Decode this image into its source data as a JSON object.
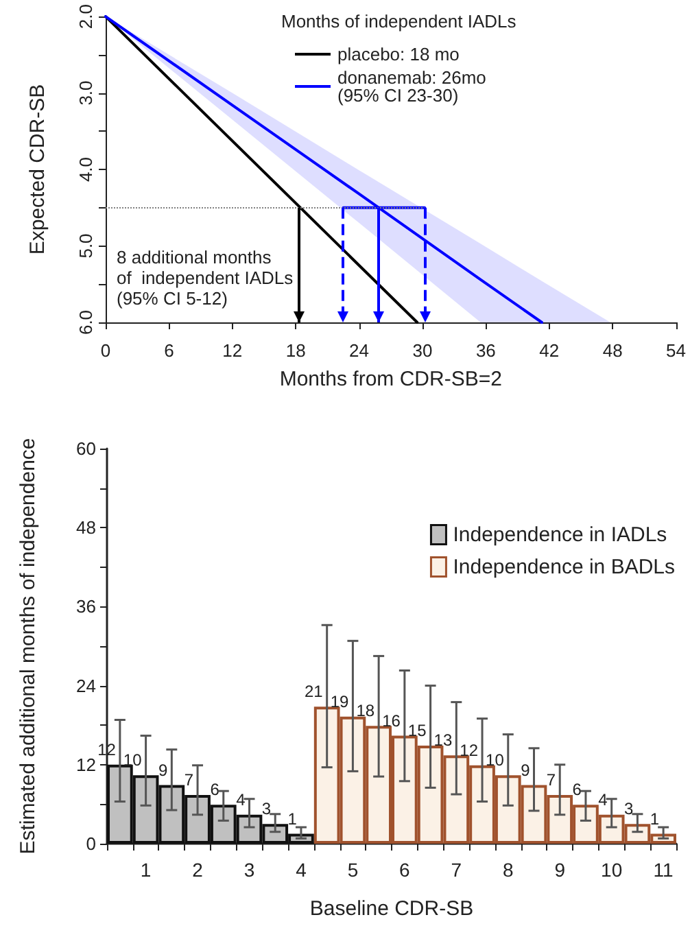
{
  "chart_data": [
    {
      "type": "line",
      "xlabel": "Months from CDR-SB=2",
      "ylabel": "Expected CDR-SB",
      "legend_title": "Months of independent IADLs",
      "xlim": [
        0,
        54
      ],
      "xticks": [
        0,
        6,
        12,
        18,
        24,
        30,
        36,
        42,
        48,
        54
      ],
      "ylim": [
        6,
        2
      ],
      "yticks": [
        {
          "value": 2,
          "label": "2.0"
        },
        {
          "value": 2.5,
          "label": null
        },
        {
          "value": 3,
          "label": "3.0"
        },
        {
          "value": 3.5,
          "label": null
        },
        {
          "value": 4,
          "label": "4.0"
        },
        {
          "value": 4.5,
          "label": null
        },
        {
          "value": 5,
          "label": "5.0"
        },
        {
          "value": 5.5,
          "label": null
        },
        {
          "value": 6,
          "label": "6.0"
        }
      ],
      "grid": false,
      "legend": "top right",
      "marker": "none",
      "line_style": "solid",
      "series": [
        {
          "name": "placebo: 18 mo",
          "color": "#000000",
          "x": [
            0,
            29.5
          ],
          "values": [
            2,
            6
          ]
        },
        {
          "name": "donanemab: 26mo\n(95% CI 23-30)",
          "color": "#0000ff",
          "x": [
            0,
            12,
            24,
            35.5,
            41.3,
            47.8
          ],
          "values": [
            2,
            3.16,
            4.32,
            5.44,
            6,
            null
          ],
          "lower": [
            2,
            3.0,
            4.01,
            4.97,
            5.46,
            6
          ],
          "upper": [
            2,
            3.35,
            4.7,
            6,
            6,
            6
          ]
        },
        {
          "color": "#0000ff",
          "x": [
            22.5,
            30.2
          ],
          "values": [
            4.5,
            4.5
          ]
        }
      ],
      "ref_lines": [
        {
          "axis": "y",
          "value": 4.5,
          "color": "#808080",
          "line_style": "dotted"
        },
        {
          "axis": "x",
          "value": 18.3,
          "color": "#000000",
          "line_style": "solid"
        },
        {
          "axis": "x",
          "value": 22.5,
          "color": "#0000ff",
          "line_style": "dashed"
        },
        {
          "axis": "x",
          "value": 25.8,
          "color": "#0000ff",
          "line_style": "solid"
        },
        {
          "axis": "x",
          "value": 30.2,
          "color": "#0000ff",
          "line_style": "dashed"
        }
      ],
      "annotations": [
        "8 additional months\nof  independent IADLs\n(95% CI 5-12)"
      ]
    },
    {
      "type": "bar",
      "stacked": true,
      "xlabel": "Baseline CDR-SB",
      "ylabel": "Estimated additional months of independence",
      "categories": [
        null,
        "1",
        null,
        "2",
        null,
        "3",
        null,
        "4",
        null,
        "5",
        null,
        "6",
        null,
        "7",
        null,
        "8",
        null,
        "9",
        null,
        "10",
        null,
        "11"
      ],
      "ylim": [
        0,
        60
      ],
      "yticks": [
        0,
        {
          "value": 6,
          "label": null
        },
        12,
        {
          "value": 18,
          "label": null
        },
        24,
        {
          "value": 30,
          "label": null
        },
        36,
        {
          "value": 42,
          "label": null
        },
        48,
        {
          "value": 54,
          "label": null
        },
        60
      ],
      "grid": false,
      "legend": "top right",
      "series": [
        {
          "name": "Independence in IADLs",
          "color": "#c0c0c0",
          "values": [
            12.0,
            10.4,
            8.9,
            7.4,
            5.9,
            4.4,
            3.0,
            1.5,
            null,
            null,
            null,
            null,
            null,
            null,
            null,
            null,
            null,
            null,
            null,
            null,
            null,
            null
          ],
          "value_labels": [
            "12",
            "10",
            "9",
            "7",
            "6",
            "4",
            "3",
            "1",
            null,
            null,
            null,
            null,
            null,
            null,
            null,
            null,
            null,
            null,
            null,
            null,
            null,
            null
          ],
          "errors": [
            [
              6.4,
              18.8
            ],
            [
              5.8,
              16.4
            ],
            [
              5.1,
              14.3
            ],
            [
              4.4,
              11.9
            ],
            [
              3.5,
              8
            ],
            [
              2.5,
              6.8
            ],
            [
              1.8,
              4.5
            ],
            [
              0.8,
              2.5
            ],
            null,
            null,
            null,
            null,
            null,
            null,
            null,
            null,
            null,
            null,
            null,
            null,
            null,
            null
          ]
        },
        {
          "name": "Independence in BADLs",
          "color": "#fbf1e6",
          "values": [
            null,
            null,
            null,
            null,
            null,
            null,
            null,
            null,
            20.8,
            19.3,
            17.9,
            16.4,
            14.9,
            13.4,
            11.9,
            10.4,
            8.9,
            7.4,
            5.9,
            4.4,
            3.0,
            1.5
          ],
          "value_labels": [
            null,
            null,
            null,
            null,
            null,
            null,
            null,
            null,
            "21",
            "19",
            "18",
            "16",
            "15",
            "13",
            "12",
            "10",
            "9",
            "7",
            "6",
            "4",
            "3",
            "1"
          ],
          "errors": [
            null,
            null,
            null,
            null,
            null,
            null,
            null,
            null,
            [
              11.6,
              33.2
            ],
            [
              11,
              30.8
            ],
            [
              10.2,
              28.5
            ],
            [
              9.5,
              26.3
            ],
            [
              8.5,
              24
            ],
            [
              7.5,
              21.5
            ],
            [
              6.4,
              19
            ],
            [
              5.8,
              16.6
            ],
            [
              5,
              14.5
            ],
            [
              4.4,
              12
            ],
            [
              3.5,
              8
            ],
            [
              2.5,
              6.8
            ],
            [
              1.8,
              4.5
            ],
            [
              0.8,
              2.5
            ]
          ]
        }
      ]
    }
  ]
}
